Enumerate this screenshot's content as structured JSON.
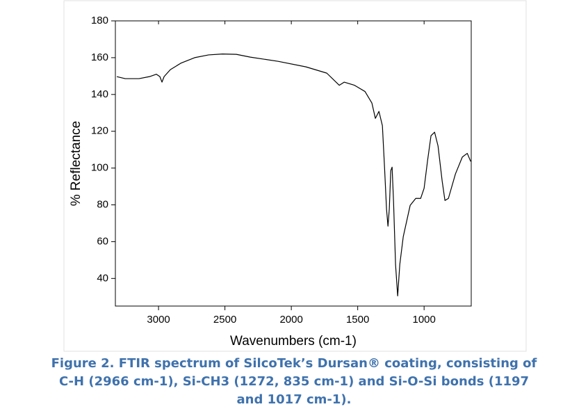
{
  "chart_data": {
    "type": "line",
    "xlabel": "Wavenumbers (cm-1)",
    "ylabel": "% Reflectance",
    "caption": "Figure 2. FTIR spectrum of SilcoTek’s Dursan® coating, consisting of C-H (2966 cm-1), Si-CH3 (1272, 835 cm-1) and Si-O-Si bonds (1197 and 1017 cm-1).",
    "color": "#000000",
    "x": [
      3314,
      3251,
      3147,
      3068,
      3016,
      2990,
      2974,
      2958,
      2911,
      2832,
      2728,
      2623,
      2518,
      2414,
      2309,
      2099,
      1890,
      1733,
      1639,
      1602,
      1524,
      1445,
      1393,
      1367,
      1340,
      1314,
      1298,
      1283,
      1272,
      1262,
      1251,
      1241,
      1230,
      1215,
      1199,
      1183,
      1157,
      1105,
      1063,
      1026,
      1000,
      974,
      948,
      921,
      895,
      864,
      843,
      817,
      764,
      712,
      675,
      649
    ],
    "values": [
      149.7,
      148.6,
      148.6,
      149.7,
      151,
      149.7,
      146.7,
      149.7,
      153.5,
      157,
      160,
      161.5,
      162,
      161.8,
      160.3,
      158,
      155,
      151.6,
      145,
      146.7,
      145,
      141.6,
      135.3,
      127,
      130.8,
      123,
      100.5,
      77.8,
      68.4,
      77.8,
      98.6,
      100.5,
      81.6,
      47.6,
      30.5,
      47.6,
      62.7,
      79.7,
      83.5,
      83.5,
      89,
      104,
      117.6,
      119.5,
      112,
      93,
      82.4,
      83.5,
      96.8,
      106,
      108,
      103.6
    ],
    "xlim": [
      3325,
      645
    ],
    "xticks": [
      3000,
      2500,
      2000,
      1500,
      1000
    ],
    "ylim": [
      25,
      180
    ],
    "yticks": [
      40,
      60,
      80,
      100,
      120,
      140,
      160,
      180
    ]
  }
}
